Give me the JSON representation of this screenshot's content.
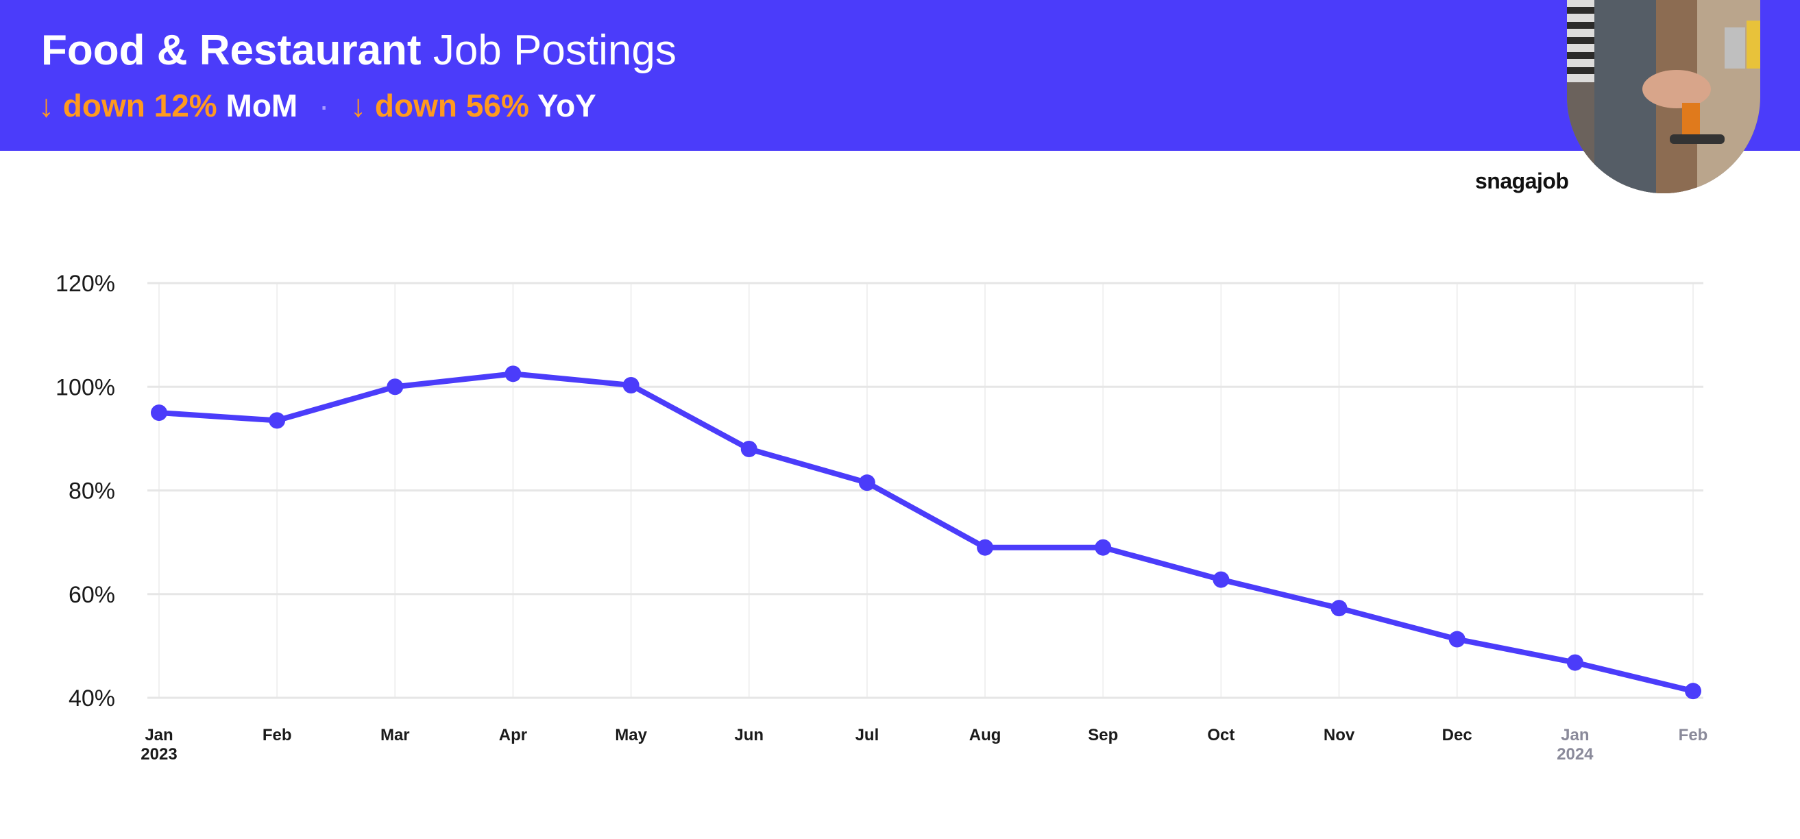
{
  "header": {
    "title_bold": "Food & Restaurant",
    "title_light": "Job Postings",
    "mom_arrow": "↓",
    "mom_value": "down 12%",
    "mom_label": "MoM",
    "separator": "·",
    "yoy_arrow": "↓",
    "yoy_value": "down 56%",
    "yoy_label": "YoY",
    "brand": "snagajob"
  },
  "colors": {
    "banner": "#4b3cfa",
    "line": "#4b3cfa",
    "accent": "#ff9a1f",
    "grid": "#e6e6e6"
  },
  "icons": {
    "photo": "barista-photo"
  },
  "chart_data": {
    "type": "line",
    "title": "Food & Restaurant Job Postings",
    "xlabel": "",
    "ylabel": "",
    "categories": [
      "Jan",
      "Feb",
      "Mar",
      "Apr",
      "May",
      "Jun",
      "Jul",
      "Aug",
      "Sep",
      "Oct",
      "Nov",
      "Dec",
      "Jan",
      "Feb"
    ],
    "category_years": [
      "2023",
      "",
      "",
      "",
      "",
      "",
      "",
      "",
      "",
      "",
      "",
      "",
      "2024",
      ""
    ],
    "values": [
      95,
      93.5,
      100,
      102.5,
      100.3,
      88,
      81.5,
      69,
      69,
      62.8,
      57.3,
      51.3,
      46.8,
      41.3
    ],
    "ylim": [
      40,
      120
    ],
    "yticks": [
      40,
      60,
      80,
      100,
      120
    ],
    "ytick_labels": [
      "40%",
      "60%",
      "80%",
      "100%",
      "120%"
    ],
    "grid": true,
    "legend": "none"
  }
}
